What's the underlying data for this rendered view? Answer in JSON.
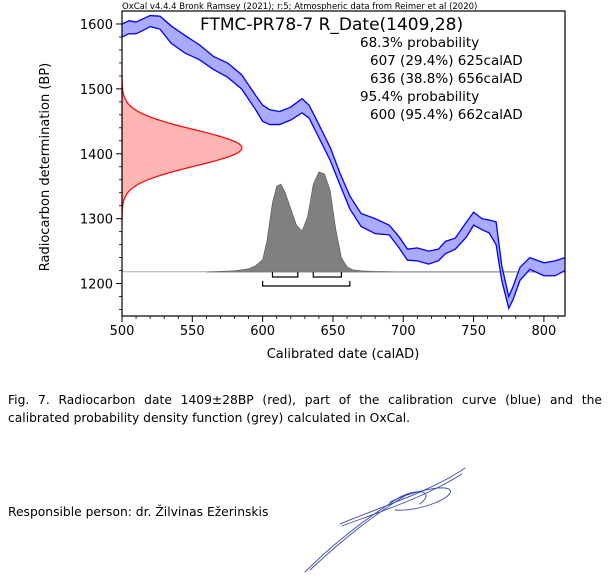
{
  "chart_data": {
    "type": "area",
    "header": "OxCal v4.4.4 Bronk Ramsey (2021); r:5; Atmospheric data from Reimer et al (2020)",
    "title": "FTMC-PR78-7 R_Date(1409,28)",
    "xlabel": "Calibrated date (calAD)",
    "ylabel": "Radiocarbon determination (BP)",
    "xlim": [
      500,
      815
    ],
    "ylim": [
      1150,
      1620
    ],
    "x_ticks": [
      500,
      550,
      600,
      650,
      700,
      750,
      800
    ],
    "y_ticks": [
      1200,
      1300,
      1400,
      1500,
      1600
    ],
    "probability_text": [
      "68.3% probability",
      "607 (29.4%) 625calAD",
      "636 (38.8%) 656calAD",
      "95.4% probability",
      "600 (95.4%) 662calAD"
    ],
    "radiocarbon_date": {
      "mean_bp": 1409,
      "sd_bp": 28,
      "color": "#ff0000",
      "fill": "#ffb4b4"
    },
    "calibration_curve": {
      "color": "#0000ff",
      "fill": "#aaaaff",
      "x": [
        500,
        505,
        510,
        515,
        520,
        527,
        535,
        545,
        555,
        565,
        575,
        585,
        595,
        600,
        605,
        612,
        620,
        628,
        633,
        640,
        648,
        655,
        662,
        670,
        680,
        690,
        697,
        703,
        710,
        718,
        725,
        730,
        737,
        745,
        750,
        756,
        761,
        766,
        770,
        775,
        778,
        783,
        790,
        800,
        808,
        815
      ],
      "upper": [
        1600,
        1605,
        1603,
        1608,
        1613,
        1612,
        1597,
        1582,
        1568,
        1550,
        1540,
        1522,
        1490,
        1475,
        1468,
        1465,
        1472,
        1485,
        1475,
        1445,
        1410,
        1370,
        1335,
        1308,
        1300,
        1290,
        1272,
        1253,
        1255,
        1250,
        1253,
        1265,
        1270,
        1295,
        1310,
        1300,
        1298,
        1295,
        1228,
        1180,
        1195,
        1225,
        1240,
        1232,
        1235,
        1240
      ],
      "lower": [
        1580,
        1585,
        1585,
        1590,
        1596,
        1592,
        1570,
        1555,
        1545,
        1530,
        1518,
        1500,
        1468,
        1450,
        1445,
        1445,
        1452,
        1463,
        1455,
        1425,
        1390,
        1352,
        1315,
        1288,
        1277,
        1275,
        1255,
        1236,
        1235,
        1230,
        1235,
        1246,
        1253,
        1272,
        1290,
        1283,
        1278,
        1260,
        1205,
        1162,
        1175,
        1205,
        1222,
        1212,
        1212,
        1220
      ]
    },
    "calibrated_distribution": {
      "color": "#808080",
      "x": [
        500,
        560,
        580,
        590,
        595,
        600,
        603,
        607,
        610,
        613,
        616,
        620,
        624,
        628,
        632,
        636,
        640,
        644,
        648,
        652,
        656,
        660,
        664,
        670,
        680,
        700,
        760,
        815
      ],
      "density": [
        0,
        0,
        0.01,
        0.03,
        0.06,
        0.12,
        0.3,
        0.68,
        0.84,
        0.86,
        0.78,
        0.62,
        0.46,
        0.4,
        0.54,
        0.86,
        0.98,
        0.96,
        0.8,
        0.42,
        0.14,
        0.05,
        0.02,
        0.01,
        0.005,
        0,
        0,
        0
      ]
    },
    "ranges_68": [
      [
        607,
        625
      ],
      [
        636,
        656
      ]
    ],
    "ranges_95": [
      [
        600,
        662
      ]
    ],
    "grid": false,
    "legend": "none"
  },
  "caption": "Fig. 7. Radiocarbon date 1409±28BP (red), part of the calibration curve (blue) and the calibrated probability density function (grey) calculated in OxCal.",
  "responsible": "Responsible person: dr. Žilvinas Ežerinskis"
}
